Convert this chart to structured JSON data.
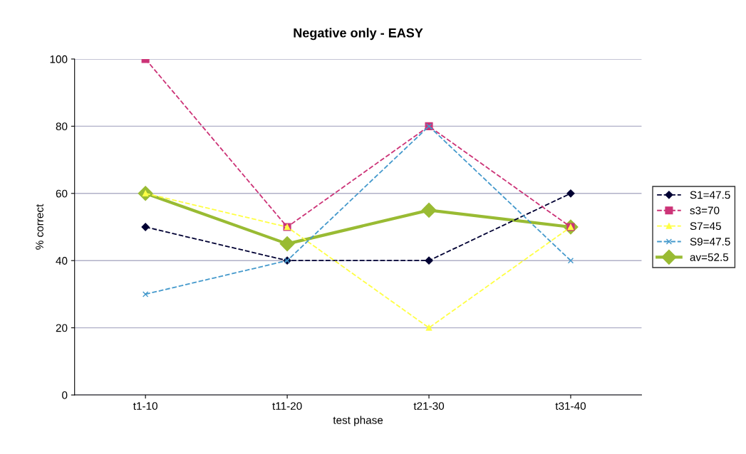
{
  "chart_data": {
    "type": "line",
    "title": "Negative only - EASY",
    "xlabel": "test phase",
    "ylabel": "% correct",
    "categories": [
      "t1-10",
      "t11-20",
      "t21-30",
      "t31-40"
    ],
    "series": [
      {
        "name": "S1=47.5",
        "color": "#000033",
        "values": [
          50,
          40,
          40,
          60
        ],
        "marker": "diamond",
        "line_style": "dashed"
      },
      {
        "name": "s3=70",
        "color": "#cc3377",
        "values": [
          100,
          50,
          80,
          50
        ],
        "marker": "square",
        "line_style": "dashed"
      },
      {
        "name": "S7=45",
        "color": "#ffff44",
        "values": [
          60,
          50,
          20,
          50
        ],
        "marker": "triangle",
        "line_style": "dashed"
      },
      {
        "name": "S9=47.5",
        "color": "#4499cc",
        "values": [
          30,
          40,
          80,
          40
        ],
        "marker": "cross",
        "line_style": "dashed"
      },
      {
        "name": "av=52.5",
        "color": "#99bb33",
        "values": [
          60,
          45,
          55,
          50
        ],
        "marker": "diamond",
        "line_style": "solid"
      }
    ],
    "ylim": [
      0,
      100
    ],
    "yticks": [
      0,
      20,
      40,
      60,
      80,
      100
    ],
    "grid": "y",
    "legend": "right"
  }
}
